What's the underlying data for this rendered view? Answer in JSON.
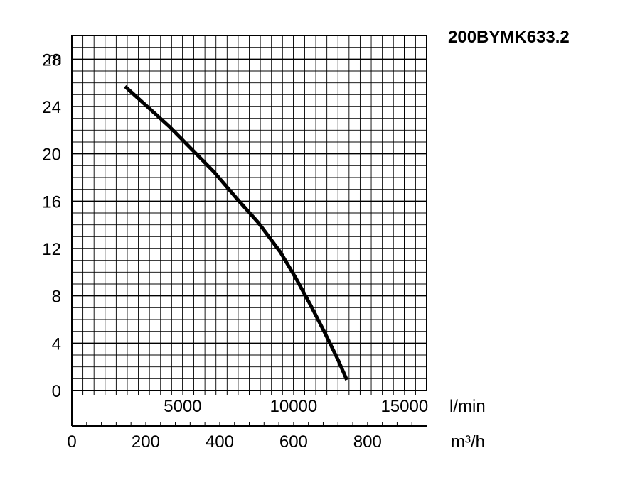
{
  "chart_data": {
    "type": "line",
    "title": "200BYMK633.2",
    "ylabel": "m",
    "x_unit_primary": "l/min",
    "x_unit_secondary": "m³/h",
    "ylim": [
      0,
      30
    ],
    "xlim_lmin": [
      0,
      16000
    ],
    "xlim_m3h": [
      0,
      960
    ],
    "y_ticks": [
      "0",
      "4",
      "8",
      "12",
      "16",
      "20",
      "24",
      "28"
    ],
    "x_ticks_lmin": [
      "5000",
      "10000",
      "15000"
    ],
    "x_ticks_m3h": [
      "0",
      "200",
      "400",
      "600",
      "800"
    ],
    "grid": true,
    "series": [
      {
        "x_lmin": [
          2400,
          3400,
          4400,
          5400,
          6400,
          7400,
          8400,
          9400,
          10100,
          10800,
          11400,
          12000,
          12400
        ],
        "y": [
          25.7,
          24.0,
          22.3,
          20.4,
          18.5,
          16.3,
          14.2,
          11.7,
          9.5,
          7.1,
          4.9,
          2.6,
          0.9
        ]
      }
    ]
  }
}
